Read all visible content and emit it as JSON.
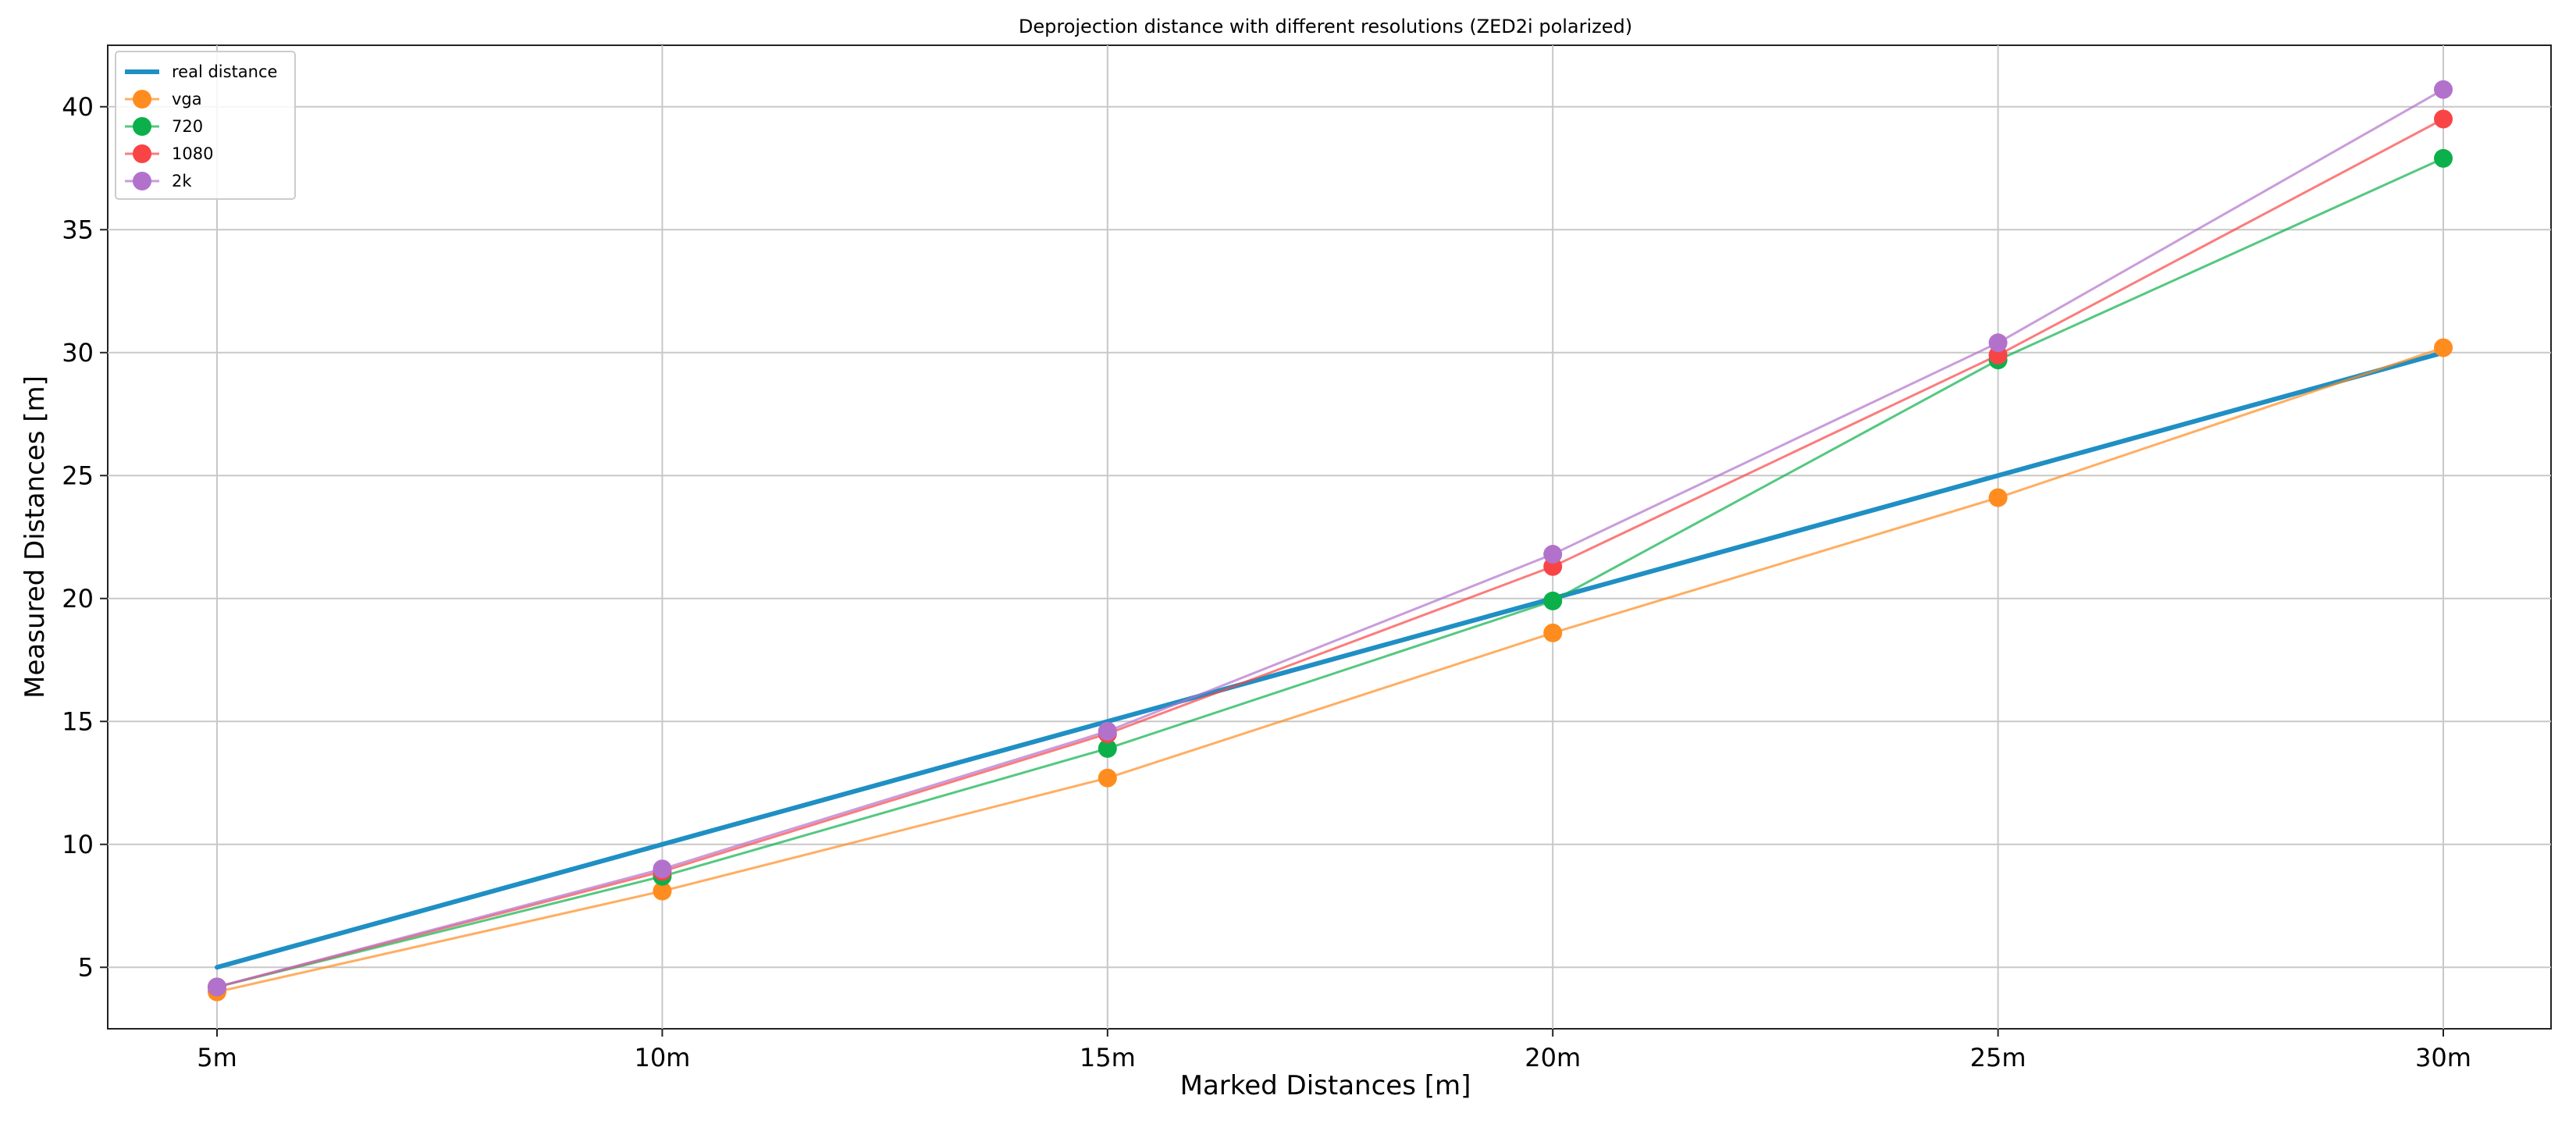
{
  "chart_data": {
    "type": "line",
    "title": "Deprojection distance with different resolutions (ZED2i polarized)",
    "xlabel": "Marked Distances [m]",
    "ylabel": "Measured Distances [m]",
    "categories": [
      "5m",
      "10m",
      "15m",
      "20m",
      "25m",
      "30m"
    ],
    "yticks": [
      5,
      10,
      15,
      20,
      25,
      30,
      35,
      40
    ],
    "ylim": [
      2.5,
      42.5
    ],
    "grid": true,
    "legend_position": "top-left",
    "series": [
      {
        "name": "real distance",
        "values": [
          5,
          10,
          15,
          20,
          25,
          30
        ],
        "color": "#1f8fc4",
        "marker": false
      },
      {
        "name": "vga",
        "values": [
          4.0,
          8.1,
          12.7,
          18.6,
          24.1,
          30.2
        ],
        "color": "#ff8c1f",
        "marker": true
      },
      {
        "name": "720",
        "values": [
          4.2,
          8.7,
          13.9,
          19.9,
          29.7,
          37.9
        ],
        "color": "#0cb04a",
        "marker": true
      },
      {
        "name": "1080",
        "values": [
          4.2,
          8.9,
          14.5,
          21.3,
          29.9,
          39.5
        ],
        "color": "#f94446",
        "marker": true
      },
      {
        "name": "2k",
        "values": [
          4.2,
          9.0,
          14.6,
          21.8,
          30.4,
          40.7
        ],
        "color": "#b272cc",
        "marker": true
      }
    ]
  }
}
